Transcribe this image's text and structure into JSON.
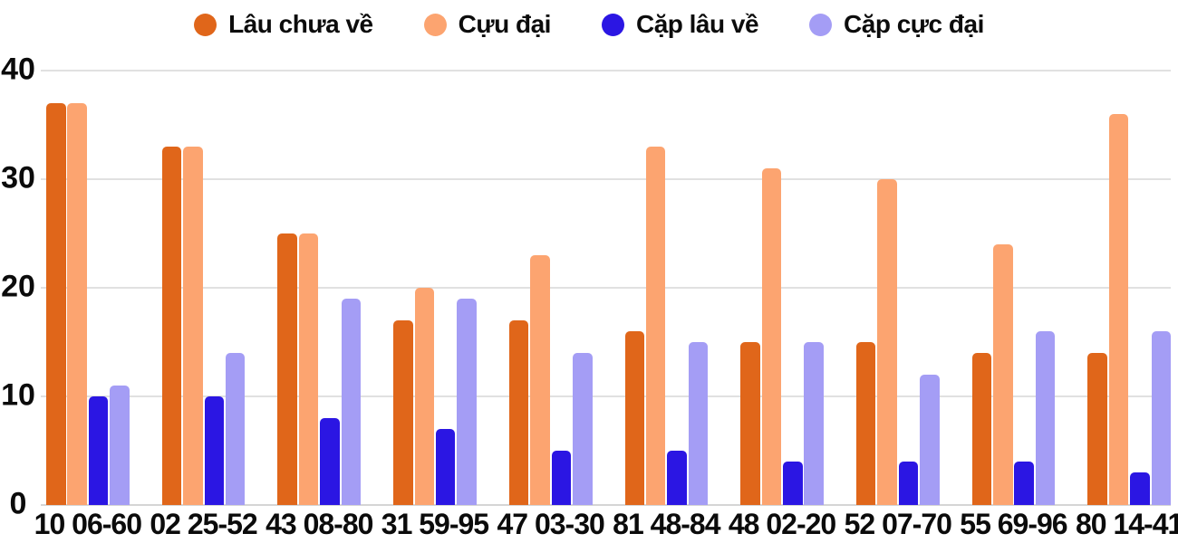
{
  "chart_data": {
    "type": "bar",
    "title": "",
    "xlabel": "",
    "ylabel": "",
    "ylim": [
      0,
      40
    ],
    "yticks": [
      0,
      10,
      20,
      30,
      40
    ],
    "grid": true,
    "legend_position": "top",
    "categories": [
      "10 06-60",
      "02 25-52",
      "43 08-80",
      "31 59-95",
      "47 03-30",
      "81 48-84",
      "48 02-20",
      "52 07-70",
      "55 69-96",
      "80 14-41"
    ],
    "series": [
      {
        "name": "Lâu chưa về",
        "color": "#e0661a",
        "values": [
          37,
          33,
          25,
          17,
          17,
          16,
          15,
          15,
          14,
          14
        ]
      },
      {
        "name": "Cựu đại",
        "color": "#fca470",
        "values": [
          37,
          33,
          25,
          20,
          23,
          33,
          31,
          30,
          24,
          36
        ]
      },
      {
        "name": "Cặp lâu về",
        "color": "#2b16e3",
        "values": [
          10,
          10,
          8,
          7,
          5,
          5,
          4,
          4,
          4,
          3
        ]
      },
      {
        "name": "Cặp cực đại",
        "color": "#a49df5",
        "values": [
          11,
          14,
          19,
          19,
          14,
          15,
          15,
          12,
          16,
          16
        ]
      }
    ],
    "colors": {
      "text": "#0b0b0b",
      "gridline": "#e1e1e1",
      "axis_line": "#d5d5d5",
      "background": "#ffffff"
    }
  }
}
